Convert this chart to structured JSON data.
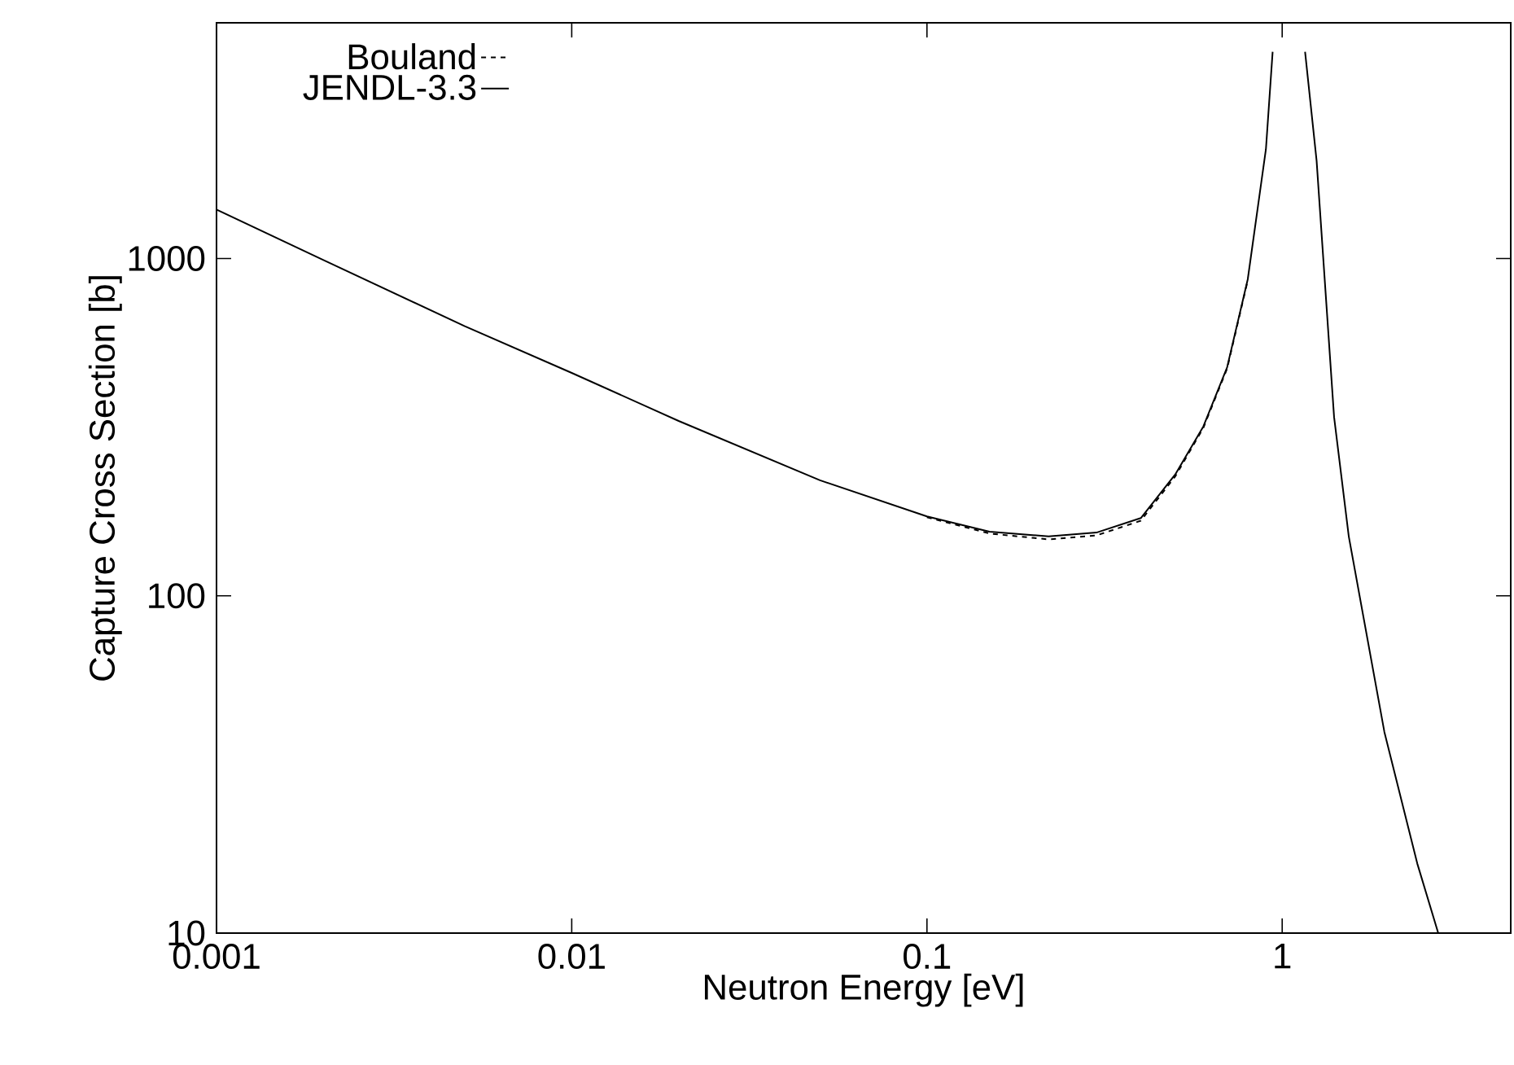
{
  "chart_data": {
    "type": "line",
    "xlabel": "Neutron Energy [eV]",
    "ylabel": "Capture Cross Section [b]",
    "log": "xy",
    "xlim": [
      0.001,
      4.4
    ],
    "ylim": [
      10,
      5000
    ],
    "xticks": [
      0.001,
      0.01,
      0.1,
      1
    ],
    "yticks": [
      10,
      100,
      1000
    ],
    "x": [
      0.001,
      0.002,
      0.005,
      0.01,
      0.02,
      0.05,
      0.1,
      0.15,
      0.22,
      0.3,
      0.4,
      0.5,
      0.6,
      0.7,
      0.8,
      0.9,
      0.94,
      1.05,
      1.16,
      1.25,
      1.4,
      1.54,
      1.94,
      2.4,
      2.75
    ],
    "legend": "top left",
    "grid": false,
    "series": [
      {
        "name": "Bouland",
        "color": "#000000",
        "line_style": "dashed",
        "x": [
          0.1,
          0.15,
          0.22,
          0.3,
          0.4,
          0.5,
          0.6,
          0.7,
          0.8
        ],
        "values": [
          171,
          153,
          147,
          151,
          167,
          226,
          315,
          472,
          862
        ]
      },
      {
        "name": "JENDL-3.3",
        "color": "#000000",
        "line_style": "solid",
        "values": [
          1397,
          990,
          630,
          458,
          330,
          220,
          172,
          155,
          150,
          154,
          170,
          229,
          318,
          476,
          868,
          2110,
          4100,
          null,
          4100,
          1950,
          339,
          150,
          39.5,
          16.1,
          10
        ]
      }
    ]
  }
}
